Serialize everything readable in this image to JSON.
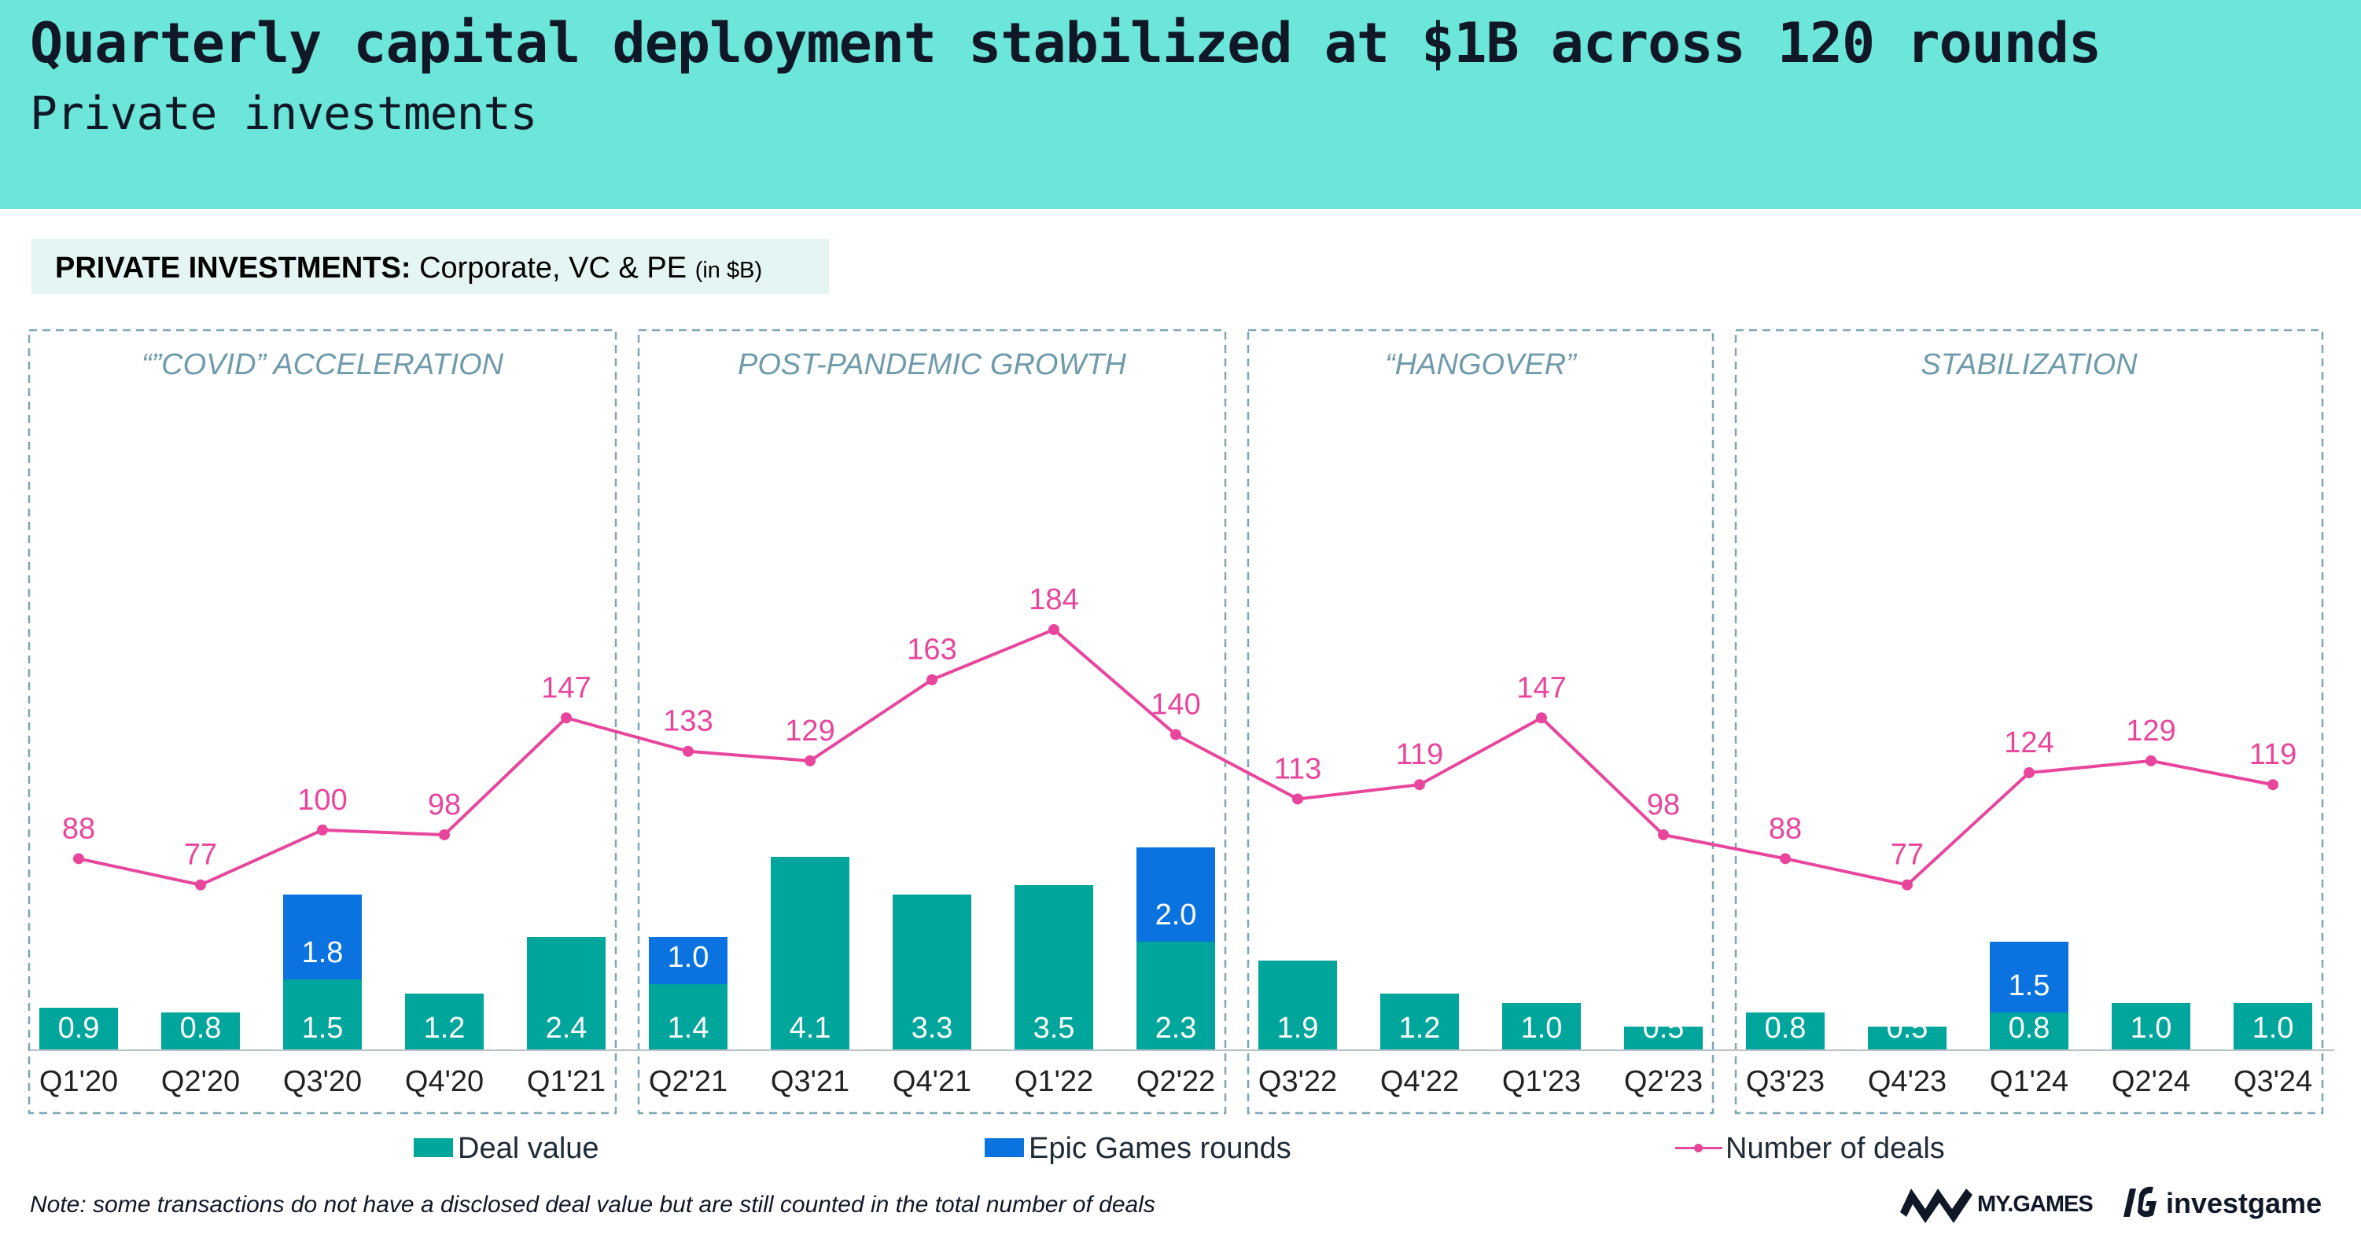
{
  "header": {
    "title": "Quarterly capital deployment stabilized at $1B across 120 rounds",
    "subtitle": "Private investments"
  },
  "chart_label": {
    "bold": "PRIVATE INVESTMENTS:",
    "rest": "Corporate, VC & PE",
    "unit": "(in $B)"
  },
  "chart_data": {
    "type": "bar",
    "categories": [
      "Q1'20",
      "Q2'20",
      "Q3'20",
      "Q4'20",
      "Q1'21",
      "Q2'21",
      "Q3'21",
      "Q4'21",
      "Q1'22",
      "Q2'22",
      "Q3'22",
      "Q4'22",
      "Q1'23",
      "Q2'23",
      "Q3'23",
      "Q4'23",
      "Q1'24",
      "Q2'24",
      "Q3'24"
    ],
    "series": [
      {
        "name": "Deal value",
        "kind": "bar",
        "stack": "value",
        "color": "#00a59b",
        "values": [
          0.9,
          0.8,
          1.5,
          1.2,
          2.4,
          1.4,
          4.1,
          3.3,
          3.5,
          2.3,
          1.9,
          1.2,
          1.0,
          0.5,
          0.8,
          0.5,
          0.8,
          1.0,
          1.0
        ]
      },
      {
        "name": "Epic Games rounds",
        "kind": "bar",
        "stack": "value",
        "color": "#0a73e0",
        "values": [
          null,
          null,
          1.8,
          null,
          null,
          1.0,
          null,
          null,
          null,
          2.0,
          null,
          null,
          null,
          null,
          null,
          null,
          1.5,
          null,
          null
        ]
      },
      {
        "name": "Number of deals",
        "kind": "line",
        "axis": "secondary",
        "color": "#e8469c",
        "values": [
          88,
          77,
          100,
          98,
          147,
          133,
          129,
          163,
          184,
          140,
          113,
          119,
          147,
          98,
          88,
          77,
          124,
          129,
          119
        ]
      }
    ],
    "phases": [
      {
        "label": "“”COVID” ACCELERATION",
        "from": "Q1'20",
        "to": "Q1'21"
      },
      {
        "label": "POST-PANDEMIC GROWTH",
        "from": "Q2'21",
        "to": "Q2'22"
      },
      {
        "label": "“HANGOVER”",
        "from": "Q3'22",
        "to": "Q2'23"
      },
      {
        "label": "STABILIZATION",
        "from": "Q3'23",
        "to": "Q3'24"
      }
    ],
    "legend_position": "bottom",
    "grid": false
  },
  "note": "Note: some transactions do not have a disclosed deal value but are still counted in the total number of deals",
  "logos": {
    "mygames": "MY.GAMES",
    "investgame": "investgame"
  }
}
